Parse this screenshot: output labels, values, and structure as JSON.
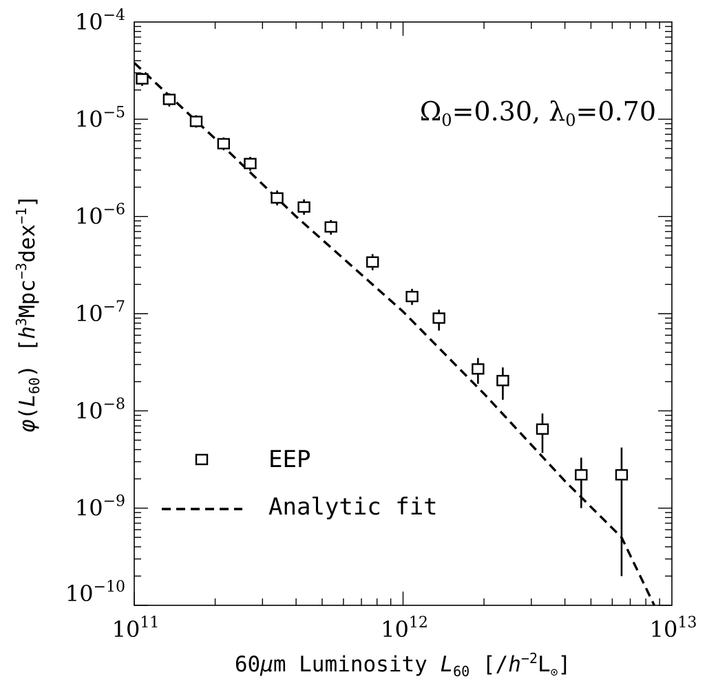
{
  "chart_data": {
    "type": "scatter",
    "x_scale": "log",
    "y_scale": "log",
    "xlim": [
      100000000000.0,
      10000000000000.0
    ],
    "ylim": [
      1e-10,
      0.0001
    ],
    "x_ticks": [
      {
        "value": 100000000000.0,
        "base": "10",
        "exp": "11"
      },
      {
        "value": 1000000000000.0,
        "base": "10",
        "exp": "12"
      },
      {
        "value": 10000000000000.0,
        "base": "10",
        "exp": "13"
      }
    ],
    "y_ticks": [
      {
        "value": 0.0001,
        "base": "10",
        "exp": "−4"
      },
      {
        "value": 1e-05,
        "base": "10",
        "exp": "−5"
      },
      {
        "value": 1e-06,
        "base": "10",
        "exp": "−6"
      },
      {
        "value": 1e-07,
        "base": "10",
        "exp": "−7"
      },
      {
        "value": 1e-08,
        "base": "10",
        "exp": "−8"
      },
      {
        "value": 1e-09,
        "base": "10",
        "exp": "−9"
      },
      {
        "value": 1e-10,
        "base": "10",
        "exp": "−10"
      }
    ],
    "xlabel": {
      "pre": "60",
      "mu": "μ",
      "m_lum": "m Luminosity ",
      "L": "L",
      "L_sub": "60",
      "bracket_open": " [/",
      "h": "h",
      "h_sup": "−2",
      "Lsun": "L",
      "sun_sub": "⊙",
      "bracket_close": "]"
    },
    "ylabel": {
      "phi": "φ",
      "paren_open": "(",
      "L": "L",
      "L_sub": "60",
      "paren_close": ")",
      "bracket_open": "  [",
      "h": "h",
      "h_sup": "3",
      "mpc": "Mpc",
      "mpc_sup": "−3",
      "dex": "dex",
      "dex_sup": "−1",
      "bracket_close": "]"
    },
    "annotation": {
      "omega": "Ω",
      "omega_sub": "0",
      "omega_val": "=0.30,  ",
      "lambda": "λ",
      "lambda_sub": "0",
      "lambda_val": "=0.70"
    },
    "legend": {
      "placement": "bottom-left",
      "entries": [
        {
          "label": "EEP",
          "marker": "square"
        },
        {
          "label": "Analytic fit",
          "marker": "dashed-line"
        }
      ]
    },
    "series": [
      {
        "name": "EEP",
        "style": "square",
        "points": [
          {
            "x": 107000000000.0,
            "y": 2.6e-05,
            "lo": 2.2e-05,
            "hi": 3e-05
          },
          {
            "x": 135000000000.0,
            "y": 1.6e-05,
            "lo": 1.35e-05,
            "hi": 1.85e-05
          },
          {
            "x": 170000000000.0,
            "y": 9.5e-06,
            "lo": 8.2e-06,
            "hi": 1.1e-05
          },
          {
            "x": 215000000000.0,
            "y": 5.6e-06,
            "lo": 4.8e-06,
            "hi": 6.5e-06
          },
          {
            "x": 270000000000.0,
            "y": 3.5e-06,
            "lo": 2.95e-06,
            "hi": 4.1e-06
          },
          {
            "x": 340000000000.0,
            "y": 1.55e-06,
            "lo": 1.3e-06,
            "hi": 1.85e-06
          },
          {
            "x": 428000000000.0,
            "y": 1.25e-06,
            "lo": 1.04e-06,
            "hi": 1.5e-06
          },
          {
            "x": 539000000000.0,
            "y": 7.8e-07,
            "lo": 6.5e-07,
            "hi": 9.2e-07
          },
          {
            "x": 770000000000.0,
            "y": 3.4e-07,
            "lo": 2.8e-07,
            "hi": 4.1e-07
          },
          {
            "x": 1080000000000.0,
            "y": 1.5e-07,
            "lo": 1.23e-07,
            "hi": 1.8e-07
          },
          {
            "x": 1360000000000.0,
            "y": 9e-08,
            "lo": 6.7e-08,
            "hi": 1.1e-07
          },
          {
            "x": 1900000000000.0,
            "y": 2.7e-08,
            "lo": 1.9e-08,
            "hi": 3.5e-08
          },
          {
            "x": 2350000000000.0,
            "y": 2.05e-08,
            "lo": 1.3e-08,
            "hi": 2.8e-08
          },
          {
            "x": 3300000000000.0,
            "y": 6.5e-09,
            "lo": 3.7e-09,
            "hi": 9.4e-09
          },
          {
            "x": 4600000000000.0,
            "y": 2.2e-09,
            "lo": 1e-09,
            "hi": 3.3e-09
          },
          {
            "x": 6500000000000.0,
            "y": 2.2e-09,
            "lo": 2e-10,
            "hi": 4.2e-09
          }
        ]
      },
      {
        "name": "Analytic fit",
        "style": "dashed-line",
        "points": [
          {
            "x": 100000000000.0,
            "y": 3.8e-05
          },
          {
            "x": 200000000000.0,
            "y": 6.3e-06
          },
          {
            "x": 400000000000.0,
            "y": 1e-06
          },
          {
            "x": 1000000000000.0,
            "y": 1.05e-07
          },
          {
            "x": 2000000000000.0,
            "y": 1.5e-08
          },
          {
            "x": 4000000000000.0,
            "y": 1.9e-09
          },
          {
            "x": 6500000000000.0,
            "y": 5e-10
          },
          {
            "x": 8600000000000.0,
            "y": 1e-10
          }
        ]
      }
    ]
  }
}
